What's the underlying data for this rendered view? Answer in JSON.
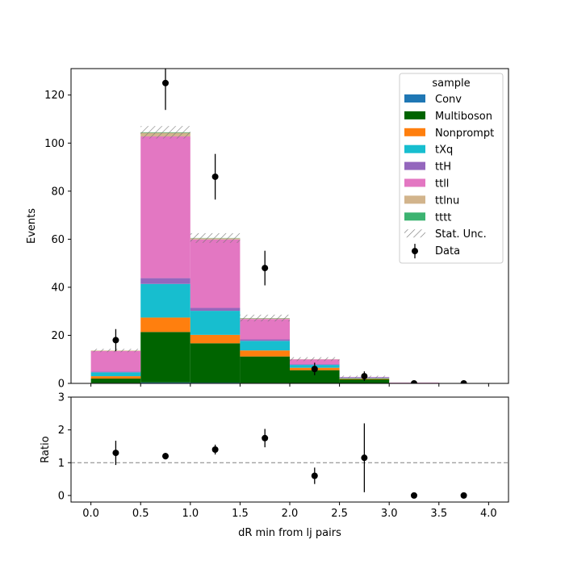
{
  "chart_data": {
    "type": "bar",
    "stacked": true,
    "xlabel": "dR min from lj pairs",
    "bin_edges": [
      0.0,
      0.5,
      1.0,
      1.5,
      2.0,
      2.5,
      3.0,
      3.5,
      4.0
    ],
    "xlim": [
      -0.2,
      4.2
    ],
    "x_ticks": [
      "0.0",
      "0.5",
      "1.0",
      "1.5",
      "2.0",
      "2.5",
      "3.0",
      "3.5",
      "4.0"
    ],
    "main": {
      "ylabel": "Events",
      "ylim": [
        0,
        131
      ],
      "y_ticks": [
        "0",
        "20",
        "40",
        "60",
        "80",
        "100",
        "120"
      ],
      "series": [
        {
          "name": "Conv",
          "color": "#1f77b4",
          "values": [
            0.2,
            0.4,
            0.3,
            0.2,
            0.1,
            0.0,
            0.0,
            0.0
          ]
        },
        {
          "name": "Multiboson",
          "color": "#006400",
          "values": [
            1.8,
            21.0,
            16.4,
            11.0,
            5.4,
            1.7,
            0.0,
            0.0
          ]
        },
        {
          "name": "Nonprompt",
          "color": "#ff7f0e",
          "values": [
            1.0,
            6.0,
            3.5,
            2.5,
            1.0,
            0.3,
            0.0,
            0.0
          ]
        },
        {
          "name": "tXq",
          "color": "#17becf",
          "values": [
            1.6,
            14.0,
            10.0,
            4.0,
            1.2,
            0.3,
            0.0,
            0.0
          ]
        },
        {
          "name": "ttH",
          "color": "#9467bd",
          "values": [
            0.3,
            2.4,
            1.2,
            0.6,
            0.3,
            0.1,
            0.0,
            0.0
          ]
        },
        {
          "name": "ttll",
          "color": "#e377c2",
          "values": [
            8.6,
            59.0,
            28.5,
            8.5,
            2.0,
            0.3,
            0.3,
            0.0
          ]
        },
        {
          "name": "ttlnu",
          "color": "#d2b48c",
          "values": [
            0.2,
            1.5,
            0.5,
            0.3,
            0.1,
            0.0,
            0.0,
            0.0
          ]
        },
        {
          "name": "tttt",
          "color": "#3cb371",
          "values": [
            0.0,
            0.2,
            0.1,
            0.1,
            0.0,
            0.0,
            0.0,
            0.0
          ]
        }
      ],
      "stat_unc": {
        "name": "Stat. Unc.",
        "values": [
          0.7,
          2.6,
          2.0,
          1.4,
          0.8,
          0.5,
          0.0,
          0.0
        ]
      },
      "data": {
        "name": "Data",
        "x": [
          0.25,
          0.75,
          1.25,
          1.75,
          2.25,
          2.75,
          3.25,
          3.75
        ],
        "y": [
          18,
          125,
          86,
          48,
          6,
          3,
          0,
          0
        ],
        "err": [
          4.6,
          11.2,
          9.5,
          7.2,
          2.6,
          2.0,
          0,
          0
        ]
      },
      "legend": {
        "title": "sample",
        "placement": "top-right"
      }
    },
    "ratio": {
      "ylabel": "Ratio",
      "ylim": [
        -0.2,
        3.0
      ],
      "y_ticks": [
        "0",
        "1",
        "2",
        "3"
      ],
      "reference_line": 1,
      "x": [
        0.25,
        0.75,
        1.25,
        1.75,
        2.25,
        2.75,
        3.25,
        3.75
      ],
      "y": [
        1.3,
        1.2,
        1.4,
        1.75,
        0.6,
        1.15,
        0.0,
        0.0
      ],
      "err": [
        0.37,
        0.1,
        0.15,
        0.28,
        0.25,
        1.05,
        0,
        0
      ]
    }
  }
}
